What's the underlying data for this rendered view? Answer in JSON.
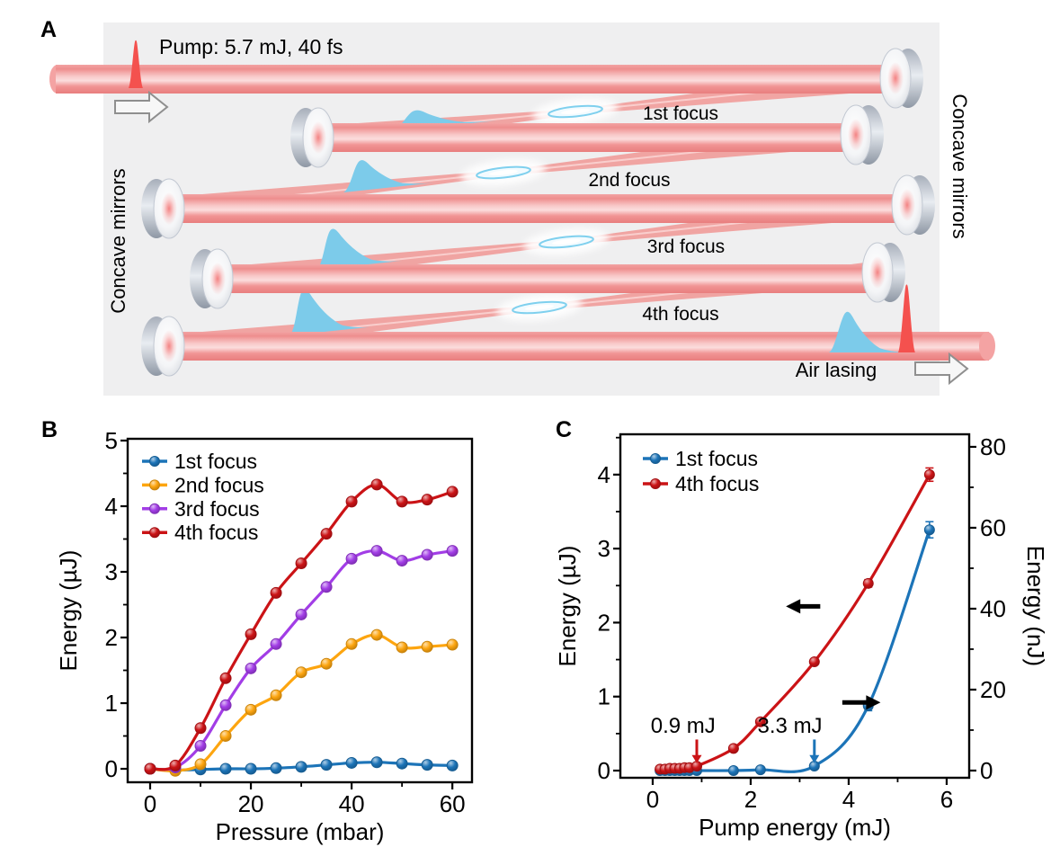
{
  "figure": {
    "panelA": {
      "label": "A",
      "pump_label": "Pump: 5.7 mJ, 40 fs",
      "left_mirrors_label": "Concave mirrors",
      "right_mirrors_label": "Concave mirrors",
      "focus_labels": [
        "1st focus",
        "2nd focus",
        "3rd focus",
        "4th focus"
      ],
      "output_label": "Air lasing"
    },
    "panelB": {
      "label": "B"
    },
    "panelC": {
      "label": "C"
    }
  },
  "colors": {
    "panel_background": "#efeff0",
    "beam_red": "#f0908e",
    "pulse_red": "#f4514e",
    "pulse_blue": "#7ccbea",
    "mirror_silver": "#c9cfd8",
    "arrow_outline": "#8f8f8f",
    "series_blue": "#1c74b8",
    "series_orange": "#fda50f",
    "series_purple": "#a23de6",
    "series_red": "#cb1316"
  },
  "chart_data": [
    {
      "type": "line",
      "panel": "B",
      "title": "",
      "xlabel": "Pressure (mbar)",
      "ylabel": "Energy (µJ)",
      "xlim": [
        -4.46,
        63.9
      ],
      "ylim": [
        -0.205,
        5.027
      ],
      "xticks": [
        0,
        20,
        40,
        60
      ],
      "xminorticks": [
        10,
        30,
        50
      ],
      "yticks": [
        0,
        1,
        2,
        3,
        4,
        5
      ],
      "yminorticks": [
        0.5,
        1.5,
        2.5,
        3.5,
        4.5
      ],
      "grid": false,
      "legend_position": "top-left",
      "x": [
        0,
        5,
        10,
        15,
        20,
        25,
        30,
        35,
        40,
        45,
        50,
        55,
        60
      ],
      "series": [
        {
          "name": "1st focus",
          "color": "#1c74b8",
          "values": [
            0,
            -0.02,
            -0.01,
            0,
            0,
            0.01,
            0.03,
            0.06,
            0.09,
            0.1,
            0.08,
            0.06,
            0.05
          ]
        },
        {
          "name": "2nd focus",
          "color": "#fda50f",
          "values": [
            0,
            -0.03,
            0.07,
            0.5,
            0.9,
            1.12,
            1.47,
            1.6,
            1.9,
            2.04,
            1.85,
            1.86,
            1.89
          ]
        },
        {
          "name": "3rd focus",
          "color": "#a23de6",
          "values": [
            0,
            0.02,
            0.35,
            0.97,
            1.53,
            1.9,
            2.35,
            2.77,
            3.2,
            3.32,
            3.17,
            3.26,
            3.32
          ]
        },
        {
          "name": "4th focus",
          "color": "#cb1316",
          "values": [
            0,
            0.05,
            0.62,
            1.38,
            2.05,
            2.68,
            3.13,
            3.58,
            4.07,
            4.33,
            4.07,
            4.1,
            4.22
          ]
        }
      ]
    },
    {
      "type": "line",
      "panel": "C",
      "title": "",
      "xlabel": "Pump energy (mJ)",
      "ylabel": "Energy (µJ)",
      "ylabel_right": "Energy (nJ)",
      "xlim": [
        -0.66,
        6.46
      ],
      "ylim": [
        -0.097,
        4.545
      ],
      "ylim_right": [
        -1.78,
        83.1
      ],
      "xticks": [
        0,
        2,
        4,
        6
      ],
      "xminorticks": [
        1,
        3,
        5
      ],
      "yticks": [
        0,
        1,
        2,
        3,
        4
      ],
      "yminorticks": [
        0.5,
        1.5,
        2.5,
        3.5,
        4.5
      ],
      "yticks_right": [
        0,
        20,
        40,
        60,
        80
      ],
      "yminorticks_right": [
        10,
        30,
        50,
        70
      ],
      "grid": false,
      "legend_position": "top-left",
      "series": [
        {
          "name": "1st focus",
          "color": "#1c74b8",
          "axis": "right",
          "x": [
            0.15,
            0.25,
            0.35,
            0.45,
            0.55,
            0.65,
            0.75,
            0.9,
            1.65,
            2.2,
            3.3,
            4.4,
            5.65
          ],
          "values": [
            0,
            0,
            0,
            0,
            0,
            0,
            0,
            0,
            0,
            0.2,
            1.1,
            16,
            59.5
          ],
          "yerr": [
            0,
            0,
            0,
            0,
            0,
            0,
            0,
            0,
            0,
            0,
            0,
            1.2,
            2.0
          ]
        },
        {
          "name": "4th focus",
          "color": "#cb1316",
          "axis": "left",
          "x": [
            0.15,
            0.25,
            0.35,
            0.45,
            0.55,
            0.65,
            0.75,
            0.9,
            1.65,
            2.2,
            3.3,
            4.4,
            5.65
          ],
          "values": [
            0.02,
            0.02,
            0.03,
            0.03,
            0.03,
            0.04,
            0.04,
            0.06,
            0.3,
            0.66,
            1.47,
            2.53,
            4.0
          ],
          "yerr": [
            0,
            0,
            0,
            0,
            0,
            0,
            0,
            0,
            0,
            0,
            0.03,
            0.05,
            0.09
          ]
        }
      ],
      "annotations": [
        {
          "text": "0.9 mJ",
          "color": "#cb1316",
          "text_x": 0.62,
          "text_y": 0.51,
          "arrow_x": 0.9,
          "arrow_y_from": 0.42,
          "arrow_y_to": 0.1
        },
        {
          "text": "3.3 mJ",
          "color": "#1c74b8",
          "text_x": 2.8,
          "text_y": 0.51,
          "arrow_x": 3.3,
          "arrow_y_from": 0.42,
          "arrow_y_to": 0.1
        }
      ],
      "axis_arrows": [
        {
          "x_tail": 3.42,
          "x_tip": 2.72,
          "y": 2.22,
          "color": "#000000",
          "meaning": "red curve reads left axis"
        },
        {
          "x_tail": 3.87,
          "x_tip": 4.65,
          "y": 0.92,
          "color": "#000000",
          "meaning": "blue curve reads right axis"
        }
      ]
    }
  ]
}
